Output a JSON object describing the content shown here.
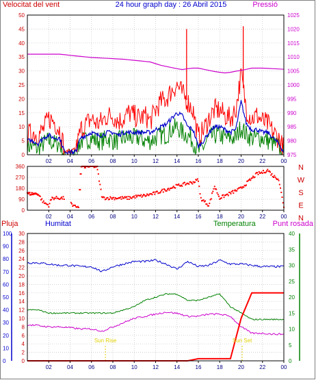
{
  "title": "24 hour graph day : 26 Abril 2015",
  "colors": {
    "red": "#ff0000",
    "blue": "#0000cc",
    "green": "#008000",
    "magenta": "#cc00cc",
    "grid": "#c0c0c0",
    "sun": "#e0d000"
  },
  "chart_data": [
    {
      "type": "line",
      "left_label": "Velocitat del vent",
      "right_label": "Pressió",
      "x_ticks": [
        "02",
        "04",
        "06",
        "08",
        "10",
        "12",
        "14",
        "16",
        "18",
        "20",
        "22",
        "00"
      ],
      "ylim_left": [
        0,
        50
      ],
      "y_ticks_left": [
        "0",
        "5",
        "10",
        "15",
        "20",
        "25",
        "30",
        "35",
        "40",
        "45",
        "50"
      ],
      "ylim_right": [
        975,
        1025
      ],
      "y_ticks_right": [
        "975",
        "980",
        "985",
        "990",
        "995",
        "1000",
        "1005",
        "1010",
        "1015",
        "1020",
        "1025"
      ],
      "grid": true,
      "x_hours": [
        0,
        0.5,
        1,
        1.5,
        2,
        2.5,
        3,
        3.5,
        4,
        4.5,
        5,
        5.5,
        6,
        6.5,
        7,
        7.5,
        8,
        8.5,
        9,
        9.5,
        10,
        10.5,
        11,
        11.5,
        12,
        12.5,
        13,
        13.5,
        14,
        14.5,
        15,
        15.5,
        16,
        16.5,
        17,
        17.5,
        18,
        18.5,
        19,
        19.5,
        20,
        20.5,
        21,
        21.5,
        22,
        22.5,
        23,
        23.5,
        24
      ],
      "series": [
        {
          "name": "gust",
          "color": "red",
          "values": [
            7,
            8,
            7,
            9,
            13,
            12,
            9,
            2,
            3,
            1,
            9,
            11,
            13,
            11,
            12,
            14,
            14,
            12,
            13,
            15,
            14,
            13,
            14,
            12,
            16,
            19,
            20,
            23,
            25,
            22,
            19,
            16,
            6,
            9,
            13,
            16,
            16,
            14,
            13,
            16,
            29,
            16,
            13,
            14,
            12,
            11,
            8,
            6,
            2
          ],
          "spikes": [
            {
              "x": 14.9,
              "y": 45
            },
            {
              "x": 20.2,
              "y": 46
            }
          ]
        },
        {
          "name": "average",
          "color": "blue",
          "values": [
            5,
            5,
            4,
            6,
            7,
            6,
            6,
            1,
            1,
            1,
            6,
            7,
            8,
            7,
            7,
            8,
            8,
            7,
            8,
            8,
            8,
            8,
            8,
            8,
            9,
            10,
            11,
            13,
            15,
            14,
            10,
            9,
            3,
            5,
            8,
            10,
            10,
            9,
            8,
            9,
            19,
            11,
            9,
            9,
            8,
            8,
            6,
            4,
            1
          ]
        },
        {
          "name": "low",
          "color": "green",
          "values": [
            3,
            3,
            2,
            4,
            5,
            4,
            4,
            0,
            0,
            0,
            5,
            5,
            6,
            5,
            5,
            6,
            5,
            5,
            6,
            6,
            6,
            6,
            5,
            5,
            6,
            7,
            7,
            9,
            10,
            8,
            7,
            5,
            1,
            3,
            6,
            7,
            7,
            6,
            6,
            6,
            10,
            7,
            6,
            6,
            6,
            5,
            4,
            3,
            0
          ]
        },
        {
          "name": "pressure",
          "color": "magenta",
          "axis": "right",
          "values": [
            1011,
            1011,
            1011,
            1011,
            1011,
            1011,
            1011,
            1010.8,
            1010.6,
            1010.4,
            1010.2,
            1010,
            1009.8,
            1009.7,
            1009.6,
            1009.5,
            1009.4,
            1009.3,
            1009.2,
            1009,
            1008.8,
            1008.6,
            1008.4,
            1008.2,
            1007.6,
            1007,
            1006.6,
            1006.2,
            1005.8,
            1005.5,
            1005.8,
            1006,
            1006,
            1005.6,
            1005.2,
            1004.8,
            1004.5,
            1004.3,
            1004.5,
            1004.9,
            1005.2,
            1005.6,
            1006,
            1006,
            1006,
            1005.9,
            1005.8,
            1005.7,
            1005.6
          ]
        }
      ]
    },
    {
      "type": "scatter",
      "right_label_letters": [
        "N",
        "W",
        "S",
        "E",
        "N"
      ],
      "ylim": [
        0,
        360
      ],
      "y_ticks": [
        "0",
        "90",
        "180",
        "270",
        "360"
      ],
      "x_ticks": [
        "02",
        "04",
        "06",
        "08",
        "10",
        "12",
        "14",
        "16",
        "18",
        "20",
        "22",
        "00"
      ],
      "anchors_x": [
        0,
        1,
        1.5,
        2,
        2.3,
        3,
        4,
        4.2,
        4.8,
        5,
        5.5,
        6.5,
        7,
        8,
        9,
        9.5,
        10,
        11,
        12,
        13,
        14,
        15,
        15.5,
        16,
        16.2,
        16.5,
        17,
        17.5,
        18,
        19,
        19.5,
        20,
        20.5,
        21,
        21.5,
        22,
        22.5,
        23,
        23.5,
        24
      ],
      "anchors_y": [
        135,
        135,
        65,
        40,
        100,
        100,
        95,
        30,
        30,
        360,
        360,
        360,
        100,
        100,
        100,
        100,
        110,
        120,
        140,
        170,
        200,
        220,
        230,
        250,
        100,
        75,
        40,
        200,
        100,
        140,
        160,
        180,
        220,
        260,
        300,
        310,
        330,
        280,
        260,
        30
      ]
    },
    {
      "type": "line",
      "labels": {
        "rain": "Pluja",
        "humidity": "Humitat",
        "temperature": "Temperatura",
        "dewpoint": "Punt rosada"
      },
      "ylim_rain": [
        0,
        30
      ],
      "y_ticks_rain": [
        "0",
        "2",
        "4",
        "6",
        "8",
        "10",
        "12",
        "14",
        "16",
        "18",
        "20",
        "22",
        "24",
        "26",
        "28",
        "30"
      ],
      "ylim_humidity": [
        0,
        100
      ],
      "y_ticks_humidity": [
        "0",
        "10",
        "20",
        "30",
        "40",
        "50",
        "60",
        "70",
        "80",
        "90",
        "100"
      ],
      "ylim_temperature": [
        0,
        40
      ],
      "y_ticks_temperature": [
        "0",
        "5",
        "10",
        "15",
        "20",
        "25",
        "30",
        "35",
        "40"
      ],
      "x_ticks": [
        "02",
        "04",
        "06",
        "08",
        "10",
        "12",
        "14",
        "16",
        "18",
        "20",
        "22",
        "00"
      ],
      "sun_events": [
        {
          "label": "Sun Rise",
          "x": 7.3
        },
        {
          "label": "Sun Set",
          "x": 20.1
        }
      ],
      "x_hours": [
        0,
        1,
        2,
        3,
        4,
        5,
        6,
        7,
        8,
        9,
        10,
        11,
        12,
        13,
        14,
        15,
        16,
        17,
        18,
        19,
        20,
        21,
        22,
        23,
        24
      ],
      "series": [
        {
          "name": "humidity",
          "color": "blue",
          "axis": "humidity",
          "values": [
            77,
            77,
            76,
            75,
            75,
            74,
            74,
            70,
            74,
            76,
            78,
            78,
            79,
            76,
            72,
            78,
            74,
            75,
            79,
            76,
            76,
            75,
            74,
            74,
            74
          ]
        },
        {
          "name": "temperature",
          "color": "green",
          "axis": "temperature",
          "values": [
            16,
            16,
            15,
            15,
            15,
            15,
            15,
            15,
            15,
            16,
            17,
            19,
            20,
            21,
            21,
            19,
            19,
            20,
            21,
            17,
            15,
            13,
            13,
            13,
            13
          ]
        },
        {
          "name": "dewpoint",
          "color": "magenta",
          "axis": "rain",
          "values": [
            8.5,
            8.3,
            8,
            8,
            7.8,
            7.5,
            7.5,
            7,
            8,
            9,
            10,
            10.5,
            11,
            11.5,
            11.2,
            10.5,
            10.5,
            11,
            11,
            10.5,
            8,
            6.5,
            6.5,
            6.3,
            6.3
          ]
        },
        {
          "name": "rain",
          "color": "red",
          "axis": "rain",
          "values": [
            0,
            0,
            0,
            0,
            0,
            0,
            0,
            0,
            0,
            0,
            0,
            0,
            0,
            0,
            0,
            0,
            0.5,
            0.5,
            0.5,
            0.5,
            10,
            16,
            16,
            16,
            16
          ]
        }
      ]
    }
  ]
}
